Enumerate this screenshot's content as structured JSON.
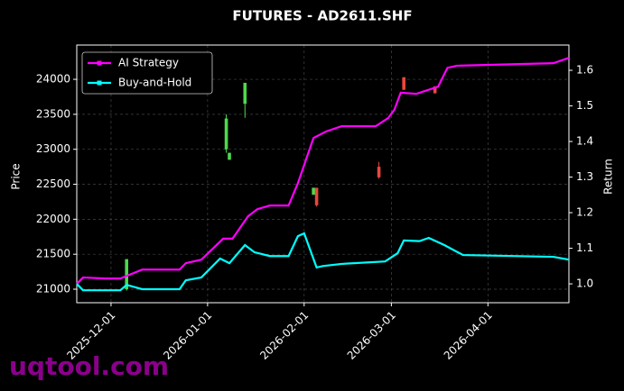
{
  "chart_data": {
    "type": "line",
    "title": "FUTURES - AD2611.SHF",
    "y_label": "Price",
    "y2_label": "Return",
    "watermark": "uqtool.com",
    "grid": true,
    "legend": "upper left",
    "xlim": [
      "2025-11-20",
      "2026-04-27"
    ],
    "xticks": [
      "2025-12-01",
      "2026-01-01",
      "2026-02-01",
      "2026-03-01",
      "2026-04-01"
    ],
    "ylim": [
      20807,
      24490
    ],
    "yticks": [
      21000,
      21500,
      22000,
      22500,
      23000,
      23500,
      24000
    ],
    "y2lim": [
      0.947,
      1.671
    ],
    "y2ticks": [
      {
        "value": 1,
        "label": "1.0"
      },
      1.1,
      1.2,
      1.3,
      1.4,
      1.5,
      1.6
    ],
    "candles": {
      "x": [
        "2025-12-06",
        "2026-01-07",
        "2026-01-08",
        "2026-01-13",
        "2026-02-04",
        "2026-02-05",
        "2026-02-25",
        "2026-03-05",
        "2026-03-15"
      ],
      "open": [
        21000,
        23000,
        22850,
        23650,
        22350,
        22450,
        22750,
        24030,
        23900
      ],
      "high": [
        21430,
        23500,
        22950,
        23950,
        22450,
        22450,
        22820,
        24030,
        23900
      ],
      "low": [
        20980,
        22950,
        22850,
        23450,
        22350,
        22180,
        22580,
        23850,
        23800
      ],
      "close": [
        21430,
        23440,
        22950,
        23950,
        22450,
        22200,
        22600,
        23850,
        23800
      ],
      "up_color": "#4cd94c",
      "down_color": "#e8473e"
    },
    "series": [
      {
        "name": "AI Strategy",
        "color": "#ff00ff",
        "axis": "y2",
        "x": [
          "2025-11-20",
          "2025-11-22",
          "2025-11-29",
          "2025-12-04",
          "2025-12-11",
          "2025-12-23",
          "2025-12-25",
          "2025-12-30",
          "2026-01-06",
          "2026-01-09",
          "2026-01-14",
          "2026-01-17",
          "2026-01-21",
          "2026-01-27",
          "2026-01-30",
          "2026-02-04",
          "2026-02-08",
          "2026-02-13",
          "2026-02-24",
          "2026-02-28",
          "2026-03-02",
          "2026-03-04",
          "2026-03-09",
          "2026-03-16",
          "2026-03-19",
          "2026-03-22",
          "2026-04-22",
          "2026-04-27"
        ],
        "values": [
          1.0,
          1.018,
          1.015,
          1.015,
          1.04,
          1.04,
          1.058,
          1.068,
          1.127,
          1.127,
          1.19,
          1.21,
          1.22,
          1.22,
          1.283,
          1.41,
          1.428,
          1.443,
          1.443,
          1.466,
          1.49,
          1.537,
          1.534,
          1.554,
          1.607,
          1.613,
          1.62,
          1.635
        ]
      },
      {
        "name": "Buy-and-Hold",
        "color": "#00ffff",
        "axis": "y2",
        "x": [
          "2025-11-20",
          "2025-11-22",
          "2025-12-04",
          "2025-12-06",
          "2025-12-09",
          "2025-12-11",
          "2025-12-23",
          "2025-12-25",
          "2025-12-30",
          "2026-01-05",
          "2026-01-08",
          "2026-01-13",
          "2026-01-16",
          "2026-01-21",
          "2026-01-27",
          "2026-01-30",
          "2026-02-01",
          "2026-02-05",
          "2026-02-07",
          "2026-02-13",
          "2026-02-27",
          "2026-03-03",
          "2026-03-05",
          "2026-03-10",
          "2026-03-13",
          "2026-03-18",
          "2026-03-24",
          "2026-04-22",
          "2026-04-27"
        ],
        "values": [
          1.0,
          0.982,
          0.982,
          0.997,
          0.99,
          0.985,
          0.985,
          1.01,
          1.018,
          1.071,
          1.058,
          1.109,
          1.089,
          1.078,
          1.078,
          1.134,
          1.142,
          1.046,
          1.05,
          1.056,
          1.063,
          1.086,
          1.122,
          1.12,
          1.129,
          1.109,
          1.081,
          1.076,
          1.068
        ]
      }
    ]
  }
}
